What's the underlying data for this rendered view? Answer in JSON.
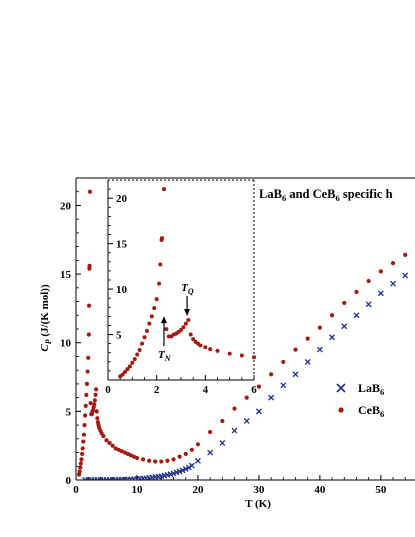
{
  "chart_data": {
    "type": "scatter",
    "title": "LaB6 and CeB6 specific h",
    "xlabel": "T (K)",
    "ylabel": "Cp (J/(K mol))",
    "xlim": [
      0,
      55
    ],
    "ylim": [
      0,
      22
    ],
    "xticks": [
      0,
      10,
      20,
      30,
      40,
      50
    ],
    "yticks": [
      0,
      5,
      10,
      15,
      20
    ],
    "legend": {
      "position": "right",
      "entries": [
        "LaB6",
        "CeB6"
      ]
    },
    "series": [
      {
        "name": "LaB6",
        "marker": "x",
        "color": "#1f2f8f",
        "points": [
          [
            1.5,
            0.0
          ],
          [
            2,
            0.0
          ],
          [
            2.5,
            0.0
          ],
          [
            3,
            0.0
          ],
          [
            3.5,
            0.0
          ],
          [
            4,
            0.0
          ],
          [
            4.5,
            0.0
          ],
          [
            5,
            0.0
          ],
          [
            5.5,
            0.01
          ],
          [
            6,
            0.01
          ],
          [
            6.5,
            0.01
          ],
          [
            7,
            0.02
          ],
          [
            7.5,
            0.02
          ],
          [
            8,
            0.03
          ],
          [
            8.5,
            0.04
          ],
          [
            9,
            0.05
          ],
          [
            9.5,
            0.06
          ],
          [
            10,
            0.07
          ],
          [
            10.5,
            0.09
          ],
          [
            11,
            0.11
          ],
          [
            11.5,
            0.13
          ],
          [
            12,
            0.15
          ],
          [
            12.5,
            0.18
          ],
          [
            13,
            0.21
          ],
          [
            13.5,
            0.24
          ],
          [
            14,
            0.28
          ],
          [
            14.5,
            0.32
          ],
          [
            15,
            0.37
          ],
          [
            15.5,
            0.42
          ],
          [
            16,
            0.48
          ],
          [
            16.5,
            0.55
          ],
          [
            17,
            0.62
          ],
          [
            17.5,
            0.7
          ],
          [
            18,
            0.8
          ],
          [
            18.5,
            0.9
          ],
          [
            19,
            1.05
          ],
          [
            20,
            1.4
          ],
          [
            22,
            2.0
          ],
          [
            24,
            2.7
          ],
          [
            26,
            3.6
          ],
          [
            28,
            4.3
          ],
          [
            30,
            5.0
          ],
          [
            32,
            6.0
          ],
          [
            34,
            6.9
          ],
          [
            36,
            7.7
          ],
          [
            38,
            8.6
          ],
          [
            40,
            9.5
          ],
          [
            42,
            10.4
          ],
          [
            44,
            11.2
          ],
          [
            46,
            12.0
          ],
          [
            48,
            12.8
          ],
          [
            50,
            13.6
          ],
          [
            52,
            14.3
          ],
          [
            54,
            14.9
          ]
        ]
      },
      {
        "name": "CeB6",
        "marker": "dot",
        "color": "#a01a0f",
        "points": [
          [
            0.5,
            0.4
          ],
          [
            0.6,
            0.6
          ],
          [
            0.7,
            0.9
          ],
          [
            0.8,
            1.2
          ],
          [
            0.9,
            1.5
          ],
          [
            1.0,
            1.9
          ],
          [
            1.1,
            2.3
          ],
          [
            1.2,
            2.8
          ],
          [
            1.3,
            3.3
          ],
          [
            1.4,
            4.0
          ],
          [
            1.5,
            4.7
          ],
          [
            1.6,
            5.4
          ],
          [
            1.7,
            6.2
          ],
          [
            1.8,
            7.0
          ],
          [
            1.9,
            7.9
          ],
          [
            2.0,
            8.9
          ],
          [
            2.1,
            10.6
          ],
          [
            2.15,
            12.7
          ],
          [
            2.2,
            15.4
          ],
          [
            2.22,
            15.6
          ],
          [
            2.3,
            21.0
          ],
          [
            2.4,
            5.6
          ],
          [
            2.5,
            4.8
          ],
          [
            2.6,
            4.8
          ],
          [
            2.7,
            5.0
          ],
          [
            2.8,
            5.1
          ],
          [
            2.9,
            5.3
          ],
          [
            3.0,
            5.5
          ],
          [
            3.1,
            5.8
          ],
          [
            3.2,
            6.2
          ],
          [
            3.3,
            6.6
          ],
          [
            3.4,
            5.0
          ],
          [
            3.5,
            4.5
          ],
          [
            3.6,
            4.2
          ],
          [
            3.7,
            4.0
          ],
          [
            3.8,
            3.8
          ],
          [
            4.0,
            3.6
          ],
          [
            4.2,
            3.4
          ],
          [
            4.5,
            3.2
          ],
          [
            5.0,
            2.9
          ],
          [
            5.5,
            2.7
          ],
          [
            6.0,
            2.5
          ],
          [
            6.5,
            2.3
          ],
          [
            7.0,
            2.2
          ],
          [
            7.5,
            2.1
          ],
          [
            8.0,
            2.0
          ],
          [
            8.5,
            1.9
          ],
          [
            9.0,
            1.8
          ],
          [
            9.5,
            1.7
          ],
          [
            10,
            1.6
          ],
          [
            11,
            1.5
          ],
          [
            12,
            1.4
          ],
          [
            13,
            1.35
          ],
          [
            14,
            1.35
          ],
          [
            15,
            1.4
          ],
          [
            16,
            1.5
          ],
          [
            17,
            1.7
          ],
          [
            18,
            1.9
          ],
          [
            19,
            2.2
          ],
          [
            20,
            2.6
          ],
          [
            22,
            3.5
          ],
          [
            24,
            4.3
          ],
          [
            26,
            5.2
          ],
          [
            28,
            6.0
          ],
          [
            30,
            6.8
          ],
          [
            32,
            7.7
          ],
          [
            34,
            8.6
          ],
          [
            36,
            9.5
          ],
          [
            38,
            10.3
          ],
          [
            40,
            11.1
          ],
          [
            42,
            12.0
          ],
          [
            44,
            12.9
          ],
          [
            46,
            13.7
          ],
          [
            48,
            14.5
          ],
          [
            50,
            15.2
          ],
          [
            52,
            15.8
          ],
          [
            54,
            16.4
          ]
        ]
      }
    ],
    "inset": {
      "xlim": [
        0,
        6
      ],
      "ylim": [
        0,
        22
      ],
      "xticks": [
        0,
        2,
        4,
        6
      ],
      "yticks": [
        5,
        10,
        15,
        20
      ],
      "series": "CeB6",
      "annotations": [
        {
          "label": "TN",
          "main": "T",
          "sub": "N",
          "x": 2.3,
          "y": 6.8,
          "arrow": "up"
        },
        {
          "label": "TQ",
          "main": "T",
          "sub": "Q",
          "x": 3.25,
          "y": 6.6,
          "arrow": "down"
        }
      ]
    }
  }
}
